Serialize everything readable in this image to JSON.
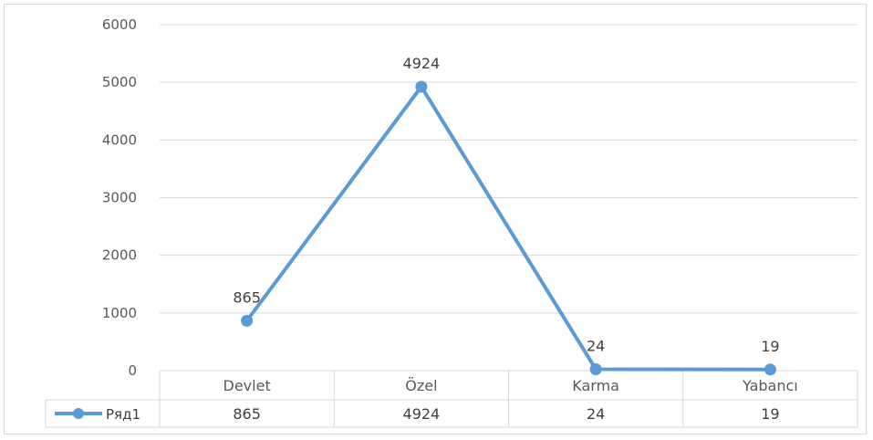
{
  "chart_data": {
    "type": "line",
    "categories": [
      "Devlet",
      "Özel",
      "Karma",
      "Yabancı"
    ],
    "series": [
      {
        "name": "Ряд1",
        "values": [
          865,
          4924,
          24,
          19
        ],
        "color": "#5b9bd5"
      }
    ],
    "ylim": [
      0,
      6000
    ],
    "yticks": [
      "0",
      "1000",
      "2000",
      "3000",
      "4000",
      "5000",
      "6000"
    ],
    "data_labels": [
      "865",
      "4924",
      "24",
      "19"
    ],
    "data_table": {
      "row_label": "Ряд1",
      "cells": [
        "865",
        "4924",
        "24",
        "19"
      ]
    },
    "grid": true,
    "legend": "data-table",
    "title": "",
    "xlabel": "",
    "ylabel": ""
  }
}
